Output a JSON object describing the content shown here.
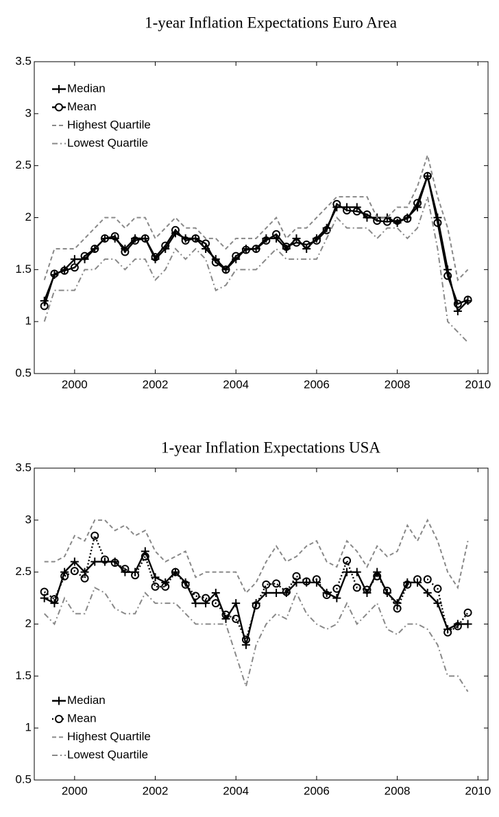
{
  "chart_data": [
    {
      "type": "line",
      "title": "1-year Inflation Expectations Euro Area",
      "x": [
        1999.25,
        1999.5,
        1999.75,
        2000,
        2000.25,
        2000.5,
        2000.75,
        2001,
        2001.25,
        2001.5,
        2001.75,
        2002,
        2002.25,
        2002.5,
        2002.75,
        2003,
        2003.25,
        2003.5,
        2003.75,
        2004,
        2004.25,
        2004.5,
        2004.75,
        2005,
        2005.25,
        2005.5,
        2005.75,
        2006,
        2006.25,
        2006.5,
        2006.75,
        2007,
        2007.25,
        2007.5,
        2007.75,
        2008,
        2008.25,
        2008.5,
        2008.75,
        2009,
        2009.25,
        2009.5,
        2009.75
      ],
      "series": [
        {
          "name": "Median",
          "color": "#000000",
          "linestyle": "solid",
          "marker": "plus",
          "values": [
            1.2,
            1.45,
            1.5,
            1.6,
            1.6,
            1.7,
            1.8,
            1.8,
            1.7,
            1.8,
            1.8,
            1.6,
            1.7,
            1.85,
            1.8,
            1.8,
            1.7,
            1.6,
            1.5,
            1.6,
            1.7,
            1.7,
            1.8,
            1.8,
            1.7,
            1.8,
            1.7,
            1.8,
            1.9,
            2.1,
            2.1,
            2.1,
            2.0,
            2.0,
            2.0,
            1.95,
            2.0,
            2.1,
            2.4,
            2.0,
            1.5,
            1.1,
            1.2
          ]
        },
        {
          "name": "Mean",
          "color": "#000000",
          "linestyle": "solid",
          "marker": "circle",
          "values": [
            1.15,
            1.46,
            1.49,
            1.52,
            1.63,
            1.7,
            1.8,
            1.82,
            1.67,
            1.78,
            1.8,
            1.62,
            1.73,
            1.88,
            1.78,
            1.8,
            1.75,
            1.57,
            1.5,
            1.63,
            1.69,
            1.7,
            1.78,
            1.84,
            1.72,
            1.76,
            1.74,
            1.78,
            1.88,
            2.13,
            2.07,
            2.06,
            2.03,
            1.97,
            1.96,
            1.97,
            1.99,
            2.14,
            2.4,
            1.95,
            1.44,
            1.17,
            1.21
          ]
        },
        {
          "name": "Highest Quartile",
          "color": "#888888",
          "linestyle": "dashed",
          "marker": "none",
          "values": [
            1.4,
            1.7,
            1.7,
            1.7,
            1.8,
            1.9,
            2.0,
            2.0,
            1.9,
            2.0,
            2.0,
            1.8,
            1.9,
            2.0,
            1.9,
            1.9,
            1.8,
            1.8,
            1.7,
            1.8,
            1.8,
            1.8,
            1.9,
            2.0,
            1.8,
            1.9,
            1.9,
            2.0,
            2.1,
            2.2,
            2.2,
            2.2,
            2.2,
            2.0,
            2.0,
            2.1,
            2.1,
            2.3,
            2.6,
            2.2,
            1.9,
            1.4,
            1.5
          ]
        },
        {
          "name": "Lowest Quartile",
          "color": "#888888",
          "linestyle": "dashdot",
          "marker": "none",
          "values": [
            1.0,
            1.3,
            1.3,
            1.3,
            1.5,
            1.5,
            1.6,
            1.6,
            1.5,
            1.6,
            1.6,
            1.4,
            1.5,
            1.7,
            1.6,
            1.7,
            1.6,
            1.3,
            1.35,
            1.5,
            1.5,
            1.5,
            1.6,
            1.7,
            1.6,
            1.6,
            1.6,
            1.6,
            1.8,
            2.0,
            1.9,
            1.9,
            1.9,
            1.8,
            1.9,
            1.9,
            1.8,
            1.9,
            2.2,
            1.7,
            1.0,
            0.9,
            0.8
          ]
        }
      ],
      "xlim": [
        1999,
        2010.25
      ],
      "xticks": [
        2000,
        2002,
        2004,
        2006,
        2008,
        2010
      ],
      "ylim": [
        0.5,
        3.5
      ],
      "yticks": [
        0.5,
        1,
        1.5,
        2,
        2.5,
        3,
        3.5
      ],
      "legend": "upper left"
    },
    {
      "type": "line",
      "title": "1-year Inflation Expectations USA",
      "x": [
        1999.25,
        1999.5,
        1999.75,
        2000,
        2000.25,
        2000.5,
        2000.75,
        2001,
        2001.25,
        2001.5,
        2001.75,
        2002,
        2002.25,
        2002.5,
        2002.75,
        2003,
        2003.25,
        2003.5,
        2003.75,
        2004,
        2004.25,
        2004.5,
        2004.75,
        2005,
        2005.25,
        2005.5,
        2005.75,
        2006,
        2006.25,
        2006.5,
        2006.75,
        2007,
        2007.25,
        2007.5,
        2007.75,
        2008,
        2008.25,
        2008.5,
        2008.75,
        2009,
        2009.25,
        2009.5,
        2009.75
      ],
      "series": [
        {
          "name": "Median",
          "color": "#000000",
          "linestyle": "solid",
          "marker": "plus",
          "values": [
            2.25,
            2.2,
            2.5,
            2.6,
            2.5,
            2.6,
            2.6,
            2.6,
            2.5,
            2.5,
            2.7,
            2.45,
            2.4,
            2.5,
            2.4,
            2.2,
            2.2,
            2.3,
            2.05,
            2.2,
            1.8,
            2.2,
            2.3,
            2.3,
            2.3,
            2.4,
            2.4,
            2.4,
            2.3,
            2.25,
            2.5,
            2.5,
            2.3,
            2.5,
            2.3,
            2.2,
            2.4,
            2.4,
            2.3,
            2.2,
            1.95,
            2.0,
            2.0
          ]
        },
        {
          "name": "Mean",
          "color": "#000000",
          "linestyle": "dotted",
          "marker": "circle",
          "values": [
            2.31,
            2.24,
            2.46,
            2.51,
            2.44,
            2.85,
            2.62,
            2.59,
            2.53,
            2.47,
            2.65,
            2.36,
            2.36,
            2.5,
            2.38,
            2.27,
            2.25,
            2.2,
            2.09,
            2.05,
            1.85,
            2.18,
            2.38,
            2.39,
            2.31,
            2.46,
            2.41,
            2.43,
            2.28,
            2.34,
            2.61,
            2.35,
            2.33,
            2.46,
            2.32,
            2.15,
            2.38,
            2.43,
            2.43,
            2.34,
            1.92,
            1.98,
            2.11
          ]
        },
        {
          "name": "Highest Quartile",
          "color": "#888888",
          "linestyle": "dashed",
          "marker": "none",
          "values": [
            2.6,
            2.6,
            2.65,
            2.85,
            2.8,
            3.0,
            3.0,
            2.9,
            2.95,
            2.85,
            2.9,
            2.7,
            2.6,
            2.65,
            2.7,
            2.45,
            2.5,
            2.5,
            2.5,
            2.5,
            2.3,
            2.4,
            2.6,
            2.75,
            2.6,
            2.65,
            2.75,
            2.8,
            2.6,
            2.55,
            2.8,
            2.7,
            2.55,
            2.75,
            2.65,
            2.7,
            2.95,
            2.8,
            3.0,
            2.8,
            2.5,
            2.35,
            2.8
          ]
        },
        {
          "name": "Lowest Quartile",
          "color": "#888888",
          "linestyle": "dashdot",
          "marker": "none",
          "values": [
            2.1,
            2.0,
            2.25,
            2.1,
            2.1,
            2.35,
            2.3,
            2.15,
            2.1,
            2.1,
            2.3,
            2.2,
            2.2,
            2.2,
            2.1,
            2.0,
            2.0,
            2.0,
            2.0,
            1.7,
            1.4,
            1.8,
            2.0,
            2.1,
            2.05,
            2.3,
            2.1,
            2.0,
            1.95,
            2.0,
            2.2,
            2.0,
            2.1,
            2.2,
            1.95,
            1.9,
            2.0,
            2.0,
            1.95,
            1.8,
            1.5,
            1.5,
            1.35
          ]
        }
      ],
      "xlim": [
        1999,
        2010.25
      ],
      "xticks": [
        2000,
        2002,
        2004,
        2006,
        2008,
        2010
      ],
      "ylim": [
        0.5,
        3.5
      ],
      "yticks": [
        0.5,
        1,
        1.5,
        2,
        2.5,
        3,
        3.5
      ],
      "legend": "lower left"
    }
  ]
}
